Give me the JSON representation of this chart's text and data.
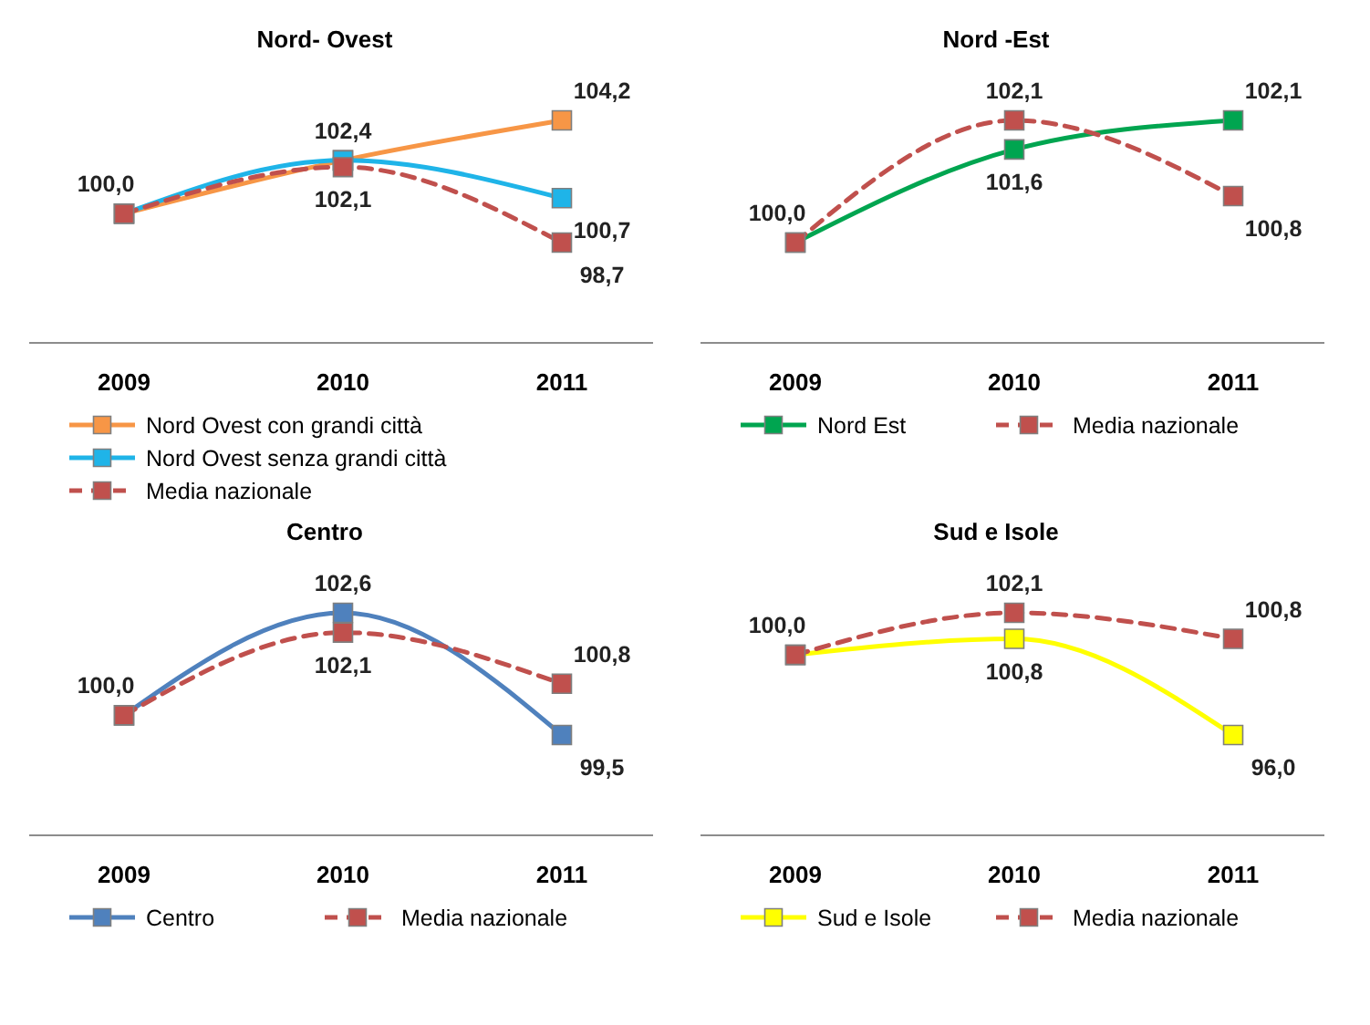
{
  "chart_data": [
    {
      "type": "line",
      "title": "Nord- Ovest",
      "categories": [
        "2009",
        "2010",
        "2011"
      ],
      "legend": "bottom",
      "marker": "square",
      "series": [
        {
          "name": "Nord Ovest con grandi città",
          "color": "#f79646",
          "values": [
            100.0,
            102.4,
            104.2
          ],
          "value_labels": [
            "100,0",
            "102,4",
            "104,2"
          ]
        },
        {
          "name": "Nord Ovest senza grandi città",
          "color": "#1fb4e8",
          "values": [
            100.0,
            102.4,
            100.7
          ],
          "value_labels": [
            null,
            null,
            "100,7"
          ]
        },
        {
          "name": "Media nazionale",
          "color": "#c0504d",
          "line_style": "dashed",
          "values": [
            100.0,
            102.1,
            98.7
          ],
          "value_labels": [
            null,
            "102,1",
            "98,7"
          ]
        }
      ]
    },
    {
      "type": "line",
      "title": "Nord -Est",
      "categories": [
        "2009",
        "2010",
        "2011"
      ],
      "legend": "bottom",
      "marker": "square",
      "series": [
        {
          "name": "Nord Est",
          "color": "#00a550",
          "values": [
            100.0,
            101.6,
            102.1
          ],
          "value_labels": [
            "100,0",
            "101,6",
            "102,1"
          ]
        },
        {
          "name": "Media nazionale",
          "color": "#c0504d",
          "line_style": "dashed",
          "values": [
            100.0,
            102.1,
            100.8
          ],
          "value_labels": [
            null,
            "102,1",
            "100,8"
          ]
        }
      ]
    },
    {
      "type": "line",
      "title": "Centro",
      "categories": [
        "2009",
        "2010",
        "2011"
      ],
      "legend": "bottom",
      "marker": "square",
      "series": [
        {
          "name": "Centro",
          "color": "#4f81bd",
          "values": [
            100.0,
            102.6,
            99.5
          ],
          "value_labels": [
            "100,0",
            "102,6",
            "99,5"
          ]
        },
        {
          "name": "Media nazionale",
          "color": "#c0504d",
          "line_style": "dashed",
          "values": [
            100.0,
            102.1,
            100.8
          ],
          "value_labels": [
            null,
            "102,1",
            "100,8"
          ]
        }
      ]
    },
    {
      "type": "line",
      "title": "Sud e Isole",
      "categories": [
        "2009",
        "2010",
        "2011"
      ],
      "legend": "bottom",
      "marker": "square",
      "series": [
        {
          "name": "Sud e Isole",
          "color": "#ffff00",
          "values": [
            100.0,
            100.8,
            96.0
          ],
          "value_labels": [
            "100,0",
            "100,8",
            "96,0"
          ]
        },
        {
          "name": "Media nazionale",
          "color": "#c0504d",
          "line_style": "dashed",
          "values": [
            100.0,
            102.1,
            100.8
          ],
          "value_labels": [
            null,
            "102,1",
            "100,8"
          ]
        }
      ]
    }
  ]
}
